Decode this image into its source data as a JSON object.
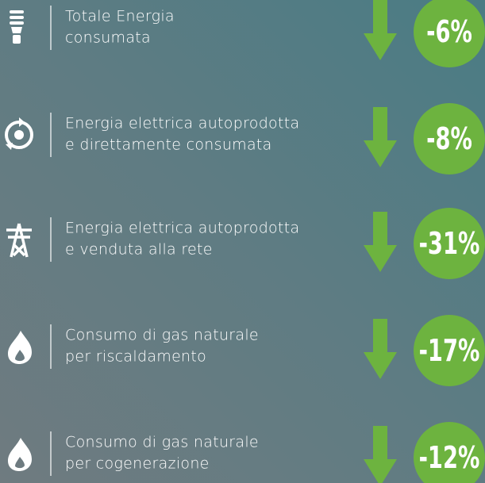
{
  "items": [
    {
      "lines": [
        "Totale Energia",
        "consumata"
      ],
      "value": "-6%"
    },
    {
      "lines": [
        "Energia elettrica autoprodotta",
        "e direttamente consumata"
      ],
      "value": "-8%"
    },
    {
      "lines": [
        "Energia elettrica autoprodotta",
        "e venduta alla rete"
      ],
      "value": "-31%"
    },
    {
      "lines": [
        "Consumo di gas naturale",
        "per riscaldamento"
      ],
      "value": "-17%"
    },
    {
      "lines": [
        "Consumo di gas naturale",
        "per cogenerazione"
      ],
      "value": "-12%"
    }
  ]
}
